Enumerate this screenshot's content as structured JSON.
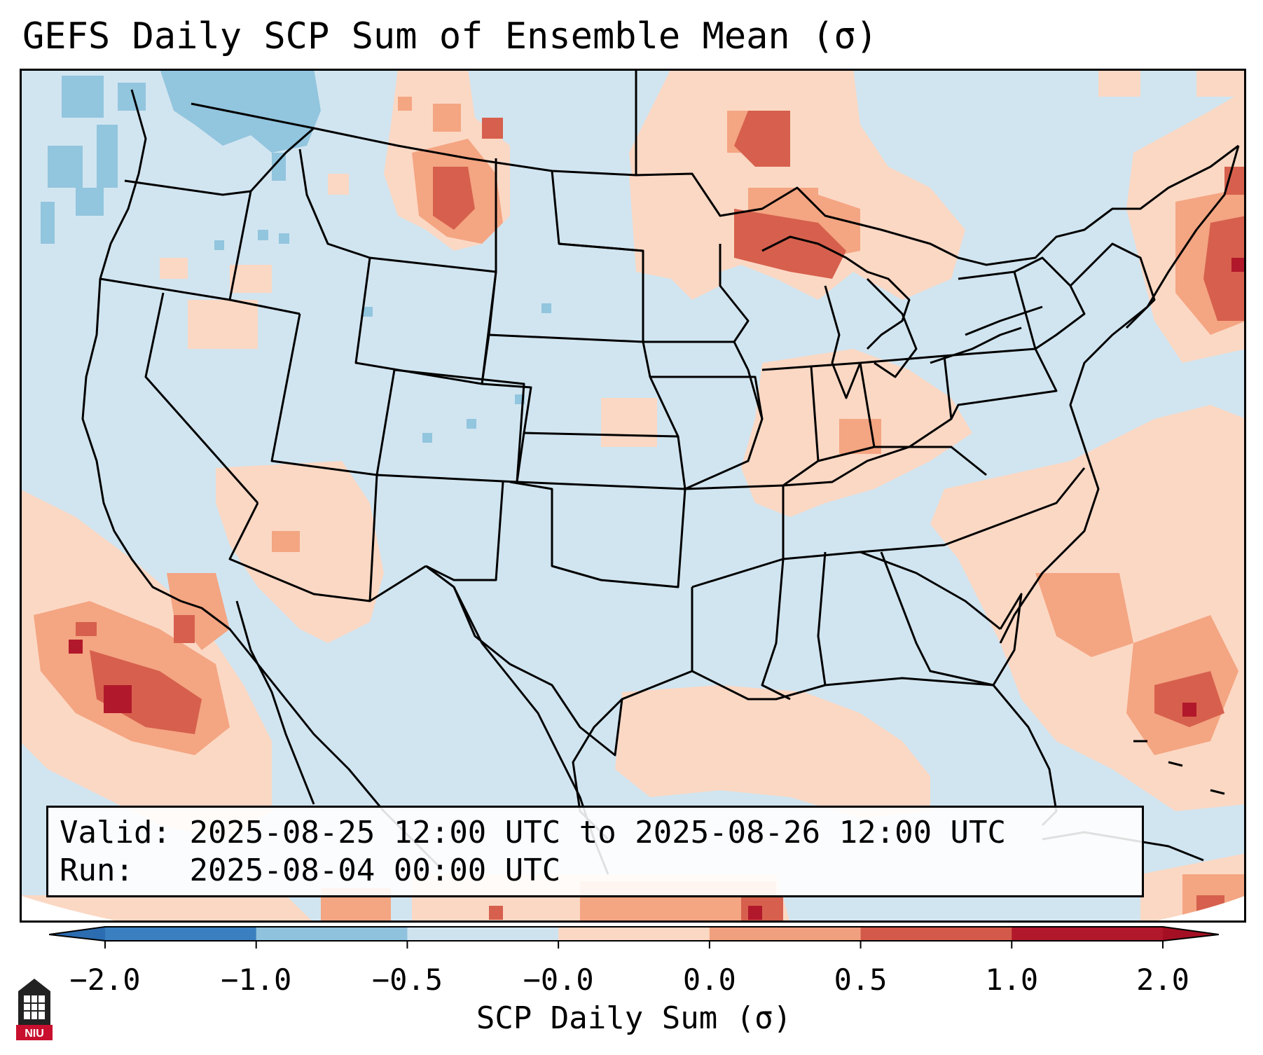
{
  "title": "GEFS Daily SCP Sum of Ensemble Mean (σ)",
  "valid_label": "Valid:",
  "valid_value": "2025-08-25 12:00 UTC to 2025-08-26 12:00 UTC",
  "run_label": "Run:",
  "run_value": "2025-08-04 00:00 UTC",
  "colorbar": {
    "label": "SCP Daily Sum (σ)",
    "ticks": [
      "−2.0",
      "−1.0",
      "−0.5",
      "−0.0",
      "0.0",
      "0.5",
      "1.0",
      "2.0"
    ],
    "colors": [
      "#3a7fbf",
      "#8fc2dd",
      "#cfe3ef",
      "#f7f7f7",
      "#fbd8c4",
      "#f0a07f",
      "#d35a4a",
      "#b2182b"
    ],
    "extend_low": "#2c6cb0",
    "extend_high": "#a50f24"
  },
  "logo": {
    "text": "NIU",
    "colors": {
      "tower": "#222222",
      "badge": "#c8102e"
    }
  },
  "map_colors": {
    "background": "#d1e5f0",
    "ocean_offmap": "#ffffff",
    "state_lines": "#000000"
  }
}
